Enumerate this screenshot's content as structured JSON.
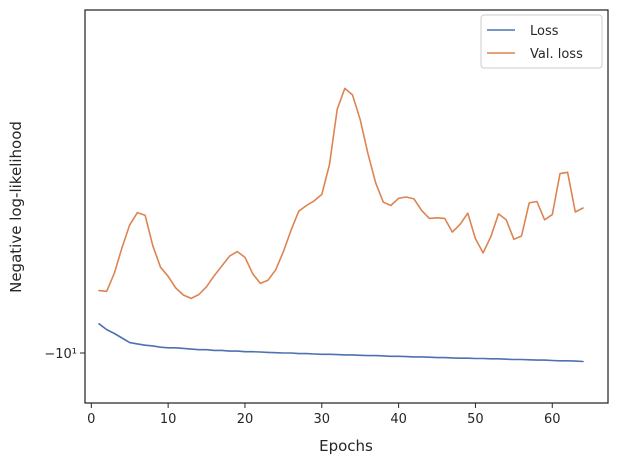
{
  "chart_data": {
    "type": "line",
    "xlabel": "Epochs",
    "ylabel": "Negative log-likelihood",
    "y_scale": "symlog",
    "y_tick_labels": [
      "−10¹"
    ],
    "x_ticks": [
      0,
      10,
      20,
      30,
      40,
      50,
      60
    ],
    "xlim": [
      -2,
      67
    ],
    "legend_position": "top-right",
    "grid": false,
    "series": [
      {
        "name": "Loss",
        "color": "#4c72b0",
        "x": [
          1,
          2,
          3,
          4,
          5,
          6,
          7,
          8,
          9,
          10,
          11,
          12,
          13,
          14,
          15,
          16,
          17,
          18,
          19,
          20,
          21,
          22,
          23,
          24,
          25,
          26,
          27,
          28,
          29,
          30,
          31,
          32,
          33,
          34,
          35,
          36,
          37,
          38,
          39,
          40,
          41,
          42,
          43,
          44,
          45,
          46,
          47,
          48,
          49,
          50,
          51,
          52,
          53,
          54,
          55,
          56,
          57,
          58,
          59,
          60,
          61,
          62,
          63,
          64
        ],
        "y": [
          -9.55,
          -9.64,
          -9.7,
          -9.77,
          -9.84,
          -9.86,
          -9.88,
          -9.89,
          -9.91,
          -9.92,
          -9.92,
          -9.93,
          -9.94,
          -9.95,
          -9.95,
          -9.96,
          -9.96,
          -9.97,
          -9.97,
          -9.98,
          -9.98,
          -9.985,
          -9.99,
          -9.995,
          -10.0,
          -10.0,
          -10.01,
          -10.01,
          -10.015,
          -10.02,
          -10.02,
          -10.025,
          -10.03,
          -10.03,
          -10.035,
          -10.04,
          -10.04,
          -10.045,
          -10.05,
          -10.05,
          -10.055,
          -10.06,
          -10.06,
          -10.065,
          -10.07,
          -10.07,
          -10.075,
          -10.08,
          -10.08,
          -10.085,
          -10.085,
          -10.09,
          -10.09,
          -10.095,
          -10.1,
          -10.1,
          -10.105,
          -10.11,
          -10.11,
          -10.115,
          -10.12,
          -10.12,
          -10.125,
          -10.13
        ]
      },
      {
        "name": "Val. loss",
        "color": "#dd8452",
        "x": [
          1,
          2,
          3,
          4,
          5,
          6,
          7,
          8,
          9,
          10,
          11,
          12,
          13,
          14,
          15,
          16,
          17,
          18,
          19,
          20,
          21,
          22,
          23,
          24,
          25,
          26,
          27,
          28,
          29,
          30,
          31,
          32,
          33,
          34,
          35,
          36,
          37,
          38,
          39,
          40,
          41,
          42,
          43,
          44,
          45,
          46,
          47,
          48,
          49,
          50,
          51,
          52,
          53,
          54,
          55,
          56,
          57,
          58,
          59,
          60,
          61,
          62,
          63,
          64
        ],
        "y": [
          -9.04,
          -9.05,
          -8.77,
          -8.38,
          -8.03,
          -7.84,
          -7.88,
          -8.35,
          -8.68,
          -8.82,
          -9.0,
          -9.11,
          -9.16,
          -9.1,
          -8.98,
          -8.81,
          -8.66,
          -8.51,
          -8.44,
          -8.53,
          -8.78,
          -8.93,
          -8.88,
          -8.72,
          -8.44,
          -8.11,
          -7.82,
          -7.73,
          -7.66,
          -7.56,
          -7.1,
          -6.25,
          -5.93,
          -6.03,
          -6.41,
          -6.93,
          -7.38,
          -7.68,
          -7.73,
          -7.62,
          -7.6,
          -7.63,
          -7.81,
          -7.93,
          -7.92,
          -7.93,
          -8.14,
          -8.02,
          -7.85,
          -8.24,
          -8.46,
          -8.21,
          -7.86,
          -7.95,
          -8.25,
          -8.2,
          -7.69,
          -7.67,
          -7.95,
          -7.87,
          -7.24,
          -7.22,
          -7.83,
          -7.77
        ]
      }
    ]
  }
}
